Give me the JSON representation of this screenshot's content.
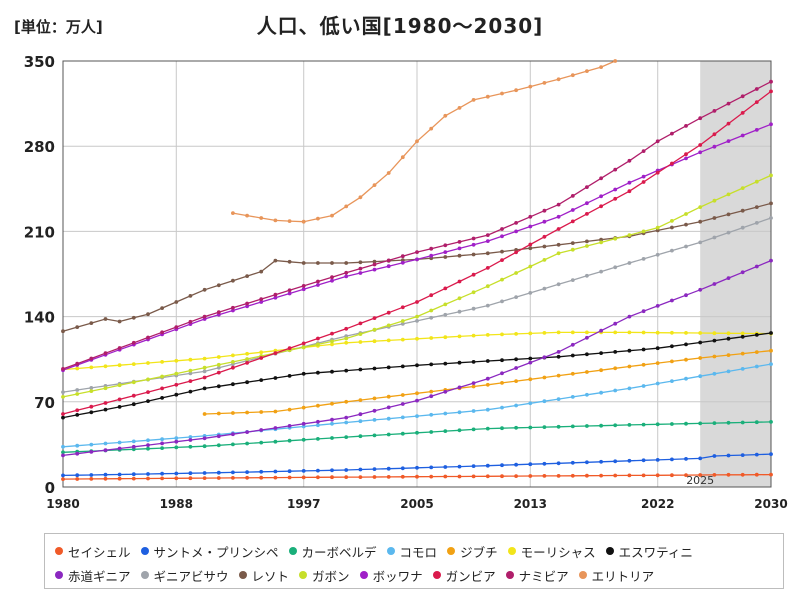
{
  "unit_label": "[単位：万人]",
  "title": "人口、低い国[1980～2030]",
  "chart_data": {
    "type": "line",
    "title": "人口、低い国[1980～2030]",
    "xlabel": "",
    "ylabel": "[単位：万人]",
    "xlim": [
      1980,
      2030
    ],
    "ylim": [
      0,
      350
    ],
    "x_ticks": [
      1980,
      1988,
      1997,
      2005,
      2013,
      2022,
      2030
    ],
    "y_ticks": [
      0,
      70,
      140,
      210,
      280,
      350
    ],
    "forecast_start": 2025,
    "forecast_label": "2025",
    "grid": true,
    "legend_position": "bottom",
    "series": [
      {
        "name": "セイシェル",
        "color": "#f05a28",
        "start": 1980,
        "end": 2030,
        "points": [
          [
            1980,
            6.5
          ],
          [
            2000,
            8.1
          ],
          [
            2030,
            10.2
          ]
        ]
      },
      {
        "name": "サントメ・プリンシペ",
        "color": "#1e5fe0",
        "start": 1980,
        "end": 2030,
        "points": [
          [
            1980,
            9.5
          ],
          [
            1990,
            11.5
          ],
          [
            2000,
            14
          ],
          [
            2010,
            17.5
          ],
          [
            2020,
            21.5
          ],
          [
            2025,
            23.5
          ],
          [
            2026,
            25.5
          ],
          [
            2030,
            27
          ]
        ]
      },
      {
        "name": "カーボベルデ",
        "color": "#1aaf7a",
        "start": 1980,
        "end": 2030,
        "points": [
          [
            1980,
            28.5
          ],
          [
            1990,
            33.5
          ],
          [
            2000,
            41
          ],
          [
            2010,
            48
          ],
          [
            2020,
            51
          ],
          [
            2030,
            53.5
          ]
        ]
      },
      {
        "name": "コモロ",
        "color": "#5bb8ee",
        "start": 1980,
        "end": 2030,
        "points": [
          [
            1980,
            33
          ],
          [
            1990,
            42
          ],
          [
            2000,
            53
          ],
          [
            2010,
            63.5
          ],
          [
            2020,
            81
          ],
          [
            2025,
            91
          ],
          [
            2030,
            101
          ]
        ]
      },
      {
        "name": "ジブチ",
        "color": "#f1a114",
        "start": 1990,
        "end": 2030,
        "points": [
          [
            1990,
            60
          ],
          [
            1995,
            62
          ],
          [
            2000,
            70
          ],
          [
            2010,
            84
          ],
          [
            2020,
            99
          ],
          [
            2025,
            106
          ],
          [
            2030,
            112
          ]
        ]
      },
      {
        "name": "モーリシャス",
        "color": "#f2e51a",
        "start": 1980,
        "end": 2030,
        "points": [
          [
            1980,
            96.5
          ],
          [
            1990,
            105.5
          ],
          [
            2000,
            118.5
          ],
          [
            2010,
            125
          ],
          [
            2015,
            127
          ],
          [
            2020,
            127
          ],
          [
            2030,
            126
          ]
        ]
      },
      {
        "name": "エスワティニ",
        "color": "#111111",
        "start": 1980,
        "end": 2030,
        "points": [
          [
            1980,
            57
          ],
          [
            1985,
            68
          ],
          [
            1990,
            81
          ],
          [
            1997,
            93
          ],
          [
            2005,
            100
          ],
          [
            2015,
            107
          ],
          [
            2022,
            114
          ],
          [
            2030,
            126.5
          ]
        ]
      },
      {
        "name": "赤道ギニア",
        "color": "#8b28c0",
        "start": 1980,
        "end": 2030,
        "points": [
          [
            1980,
            26
          ],
          [
            1990,
            40
          ],
          [
            2000,
            57
          ],
          [
            2005,
            71
          ],
          [
            2010,
            89
          ],
          [
            2015,
            111
          ],
          [
            2020,
            140
          ],
          [
            2025,
            162
          ],
          [
            2030,
            186
          ]
        ]
      },
      {
        "name": "ギニアビサウ",
        "color": "#9fa4ab",
        "start": 1980,
        "end": 2030,
        "points": [
          [
            1980,
            78
          ],
          [
            1990,
            95
          ],
          [
            2000,
            124
          ],
          [
            2010,
            149
          ],
          [
            2020,
            184
          ],
          [
            2025,
            201
          ],
          [
            2030,
            221
          ]
        ]
      },
      {
        "name": "レソト",
        "color": "#7a5a4a",
        "start": 1980,
        "end": 2030,
        "points": [
          [
            1980,
            128
          ],
          [
            1983,
            138
          ],
          [
            1984,
            136
          ],
          [
            1986,
            142
          ],
          [
            1990,
            162
          ],
          [
            1994,
            177
          ],
          [
            1995,
            186
          ],
          [
            1997,
            184
          ],
          [
            2000,
            184
          ],
          [
            2005,
            187
          ],
          [
            2010,
            192
          ],
          [
            2015,
            199
          ],
          [
            2020,
            206
          ],
          [
            2025,
            218
          ],
          [
            2030,
            233
          ]
        ]
      },
      {
        "name": "ガボン",
        "color": "#c7df2a",
        "start": 1980,
        "end": 2030,
        "points": [
          [
            1980,
            74
          ],
          [
            1990,
            98
          ],
          [
            2000,
            122
          ],
          [
            2005,
            140
          ],
          [
            2010,
            165
          ],
          [
            2015,
            192
          ],
          [
            2022,
            213
          ],
          [
            2025,
            230
          ],
          [
            2030,
            256
          ]
        ]
      },
      {
        "name": "ボッワナ",
        "color": "#a020c8",
        "start": 1980,
        "end": 2030,
        "points": [
          [
            1980,
            96
          ],
          [
            1990,
            138
          ],
          [
            2000,
            173
          ],
          [
            2005,
            187
          ],
          [
            2010,
            202
          ],
          [
            2015,
            222
          ],
          [
            2020,
            250
          ],
          [
            2025,
            275
          ],
          [
            2030,
            298
          ]
        ]
      },
      {
        "name": "ガンビア",
        "color": "#da1a4c",
        "start": 1980,
        "end": 2030,
        "points": [
          [
            1980,
            60
          ],
          [
            1990,
            90
          ],
          [
            2000,
            130
          ],
          [
            2005,
            152
          ],
          [
            2010,
            180
          ],
          [
            2015,
            212
          ],
          [
            2020,
            243
          ],
          [
            2025,
            281
          ],
          [
            2030,
            325
          ]
        ]
      },
      {
        "name": "ナミビア",
        "color": "#b01e6a",
        "start": 1980,
        "end": 2030,
        "points": [
          [
            1980,
            97
          ],
          [
            1990,
            140
          ],
          [
            2000,
            176
          ],
          [
            2005,
            193
          ],
          [
            2010,
            207
          ],
          [
            2015,
            232
          ],
          [
            2020,
            268
          ],
          [
            2022,
            284
          ],
          [
            2025,
            303
          ],
          [
            2030,
            333
          ]
        ]
      },
      {
        "name": "エリトリア",
        "color": "#e8955a",
        "start": 1992,
        "end": 2019,
        "points": [
          [
            1992,
            225
          ],
          [
            1995,
            219
          ],
          [
            1997,
            218
          ],
          [
            1999,
            223
          ],
          [
            2001,
            238
          ],
          [
            2003,
            258
          ],
          [
            2005,
            284
          ],
          [
            2007,
            305
          ],
          [
            2009,
            318
          ],
          [
            2012,
            326
          ],
          [
            2015,
            335
          ],
          [
            2018,
            345
          ],
          [
            2019,
            350
          ]
        ]
      }
    ]
  }
}
